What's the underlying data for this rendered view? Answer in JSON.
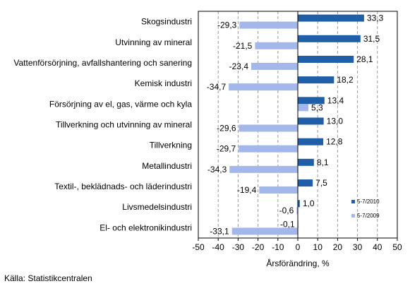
{
  "chart_data": {
    "type": "bar",
    "orientation": "horizontal",
    "categories": [
      "Skogsindustri",
      "Utvinning av mineral",
      "Vattenförsörjning, avfallshantering och sanering",
      "Kemisk industri",
      "Försörjning av el, gas, värme och kyla",
      "Tillverkning och utvinning av mineral",
      "Tillverkning",
      "Metallindustri",
      "Textil-, beklädnads- och läderindustri",
      "Livsmedelsindustri",
      "El- och elektronikindustri"
    ],
    "series": [
      {
        "name": "5-7/2010",
        "color": "#1f5fa8",
        "values": [
          33.3,
          31.5,
          28.1,
          18.2,
          13.4,
          13.0,
          12.8,
          8.1,
          7.5,
          1.0,
          -0.1
        ]
      },
      {
        "name": "5-7/2009",
        "color": "#a3b7ea",
        "values": [
          -29.3,
          -21.5,
          -23.4,
          -34.7,
          5.3,
          -29.6,
          -29.7,
          -34.3,
          -19.4,
          -0.6,
          -33.1
        ]
      }
    ],
    "value_labels": [
      [
        "33,3",
        "31,5",
        "28,1",
        "18,2",
        "13,4",
        "13,0",
        "12,8",
        "8,1",
        "7,5",
        "1,0",
        "-0,1"
      ],
      [
        "-29,3",
        "-21,5",
        "-23,4",
        "-34,7",
        "5,3",
        "-29,6",
        "-29,7",
        "-34,3",
        "-19,4",
        "-0,6",
        "-33,1"
      ]
    ],
    "xlim": [
      -50,
      50
    ],
    "xticks": [
      "-50",
      "-40",
      "-30",
      "-20",
      "-10",
      "0",
      "10",
      "20",
      "30",
      "40",
      "50"
    ],
    "xlabel": "Årsförändring, %",
    "gridlines": "vertical",
    "legend_placement": "bottom-right"
  },
  "source": "Källa: Statistikcentralen"
}
